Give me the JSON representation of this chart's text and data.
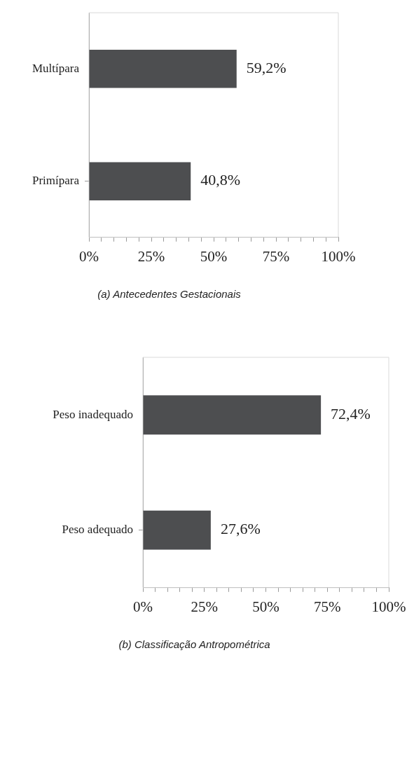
{
  "chart_data": [
    {
      "type": "bar",
      "orientation": "horizontal",
      "title": "(a) Antecedentes Gestacionais",
      "categories": [
        "Multípara",
        "Primípara"
      ],
      "values": [
        59.2,
        40.8
      ],
      "value_labels": [
        "59,2%",
        "40,8%"
      ],
      "color": "#4d4e50",
      "xlim": [
        0,
        100
      ],
      "xticks": [
        {
          "value": 0,
          "label": "0%"
        },
        {
          "value": 5,
          "label": null
        },
        {
          "value": 10,
          "label": null
        },
        {
          "value": 15,
          "label": null
        },
        {
          "value": 20,
          "label": null
        },
        {
          "value": 25,
          "label": "25%"
        },
        {
          "value": 30,
          "label": null
        },
        {
          "value": 35,
          "label": null
        },
        {
          "value": 40,
          "label": null
        },
        {
          "value": 45,
          "label": null
        },
        {
          "value": 50,
          "label": "50%"
        },
        {
          "value": 55,
          "label": null
        },
        {
          "value": 60,
          "label": null
        },
        {
          "value": 65,
          "label": null
        },
        {
          "value": 70,
          "label": null
        },
        {
          "value": 75,
          "label": "75%"
        },
        {
          "value": 80,
          "label": null
        },
        {
          "value": 85,
          "label": null
        },
        {
          "value": 90,
          "label": null
        },
        {
          "value": 95,
          "label": null
        },
        {
          "value": 100,
          "label": "100%"
        }
      ],
      "grid": false,
      "legend": false
    },
    {
      "type": "bar",
      "orientation": "horizontal",
      "title": "(b) Classificação Antropométrica",
      "categories": [
        "Peso inadequado",
        "Peso adequado"
      ],
      "values": [
        72.4,
        27.6
      ],
      "value_labels": [
        "72,4%",
        "27,6%"
      ],
      "color": "#4d4e50",
      "xlim": [
        0,
        100
      ],
      "xticks": [
        {
          "value": 0,
          "label": "0%"
        },
        {
          "value": 5,
          "label": null
        },
        {
          "value": 10,
          "label": null
        },
        {
          "value": 15,
          "label": null
        },
        {
          "value": 20,
          "label": null
        },
        {
          "value": 25,
          "label": "25%"
        },
        {
          "value": 30,
          "label": null
        },
        {
          "value": 35,
          "label": null
        },
        {
          "value": 40,
          "label": null
        },
        {
          "value": 45,
          "label": null
        },
        {
          "value": 50,
          "label": "50%"
        },
        {
          "value": 55,
          "label": null
        },
        {
          "value": 60,
          "label": null
        },
        {
          "value": 65,
          "label": null
        },
        {
          "value": 70,
          "label": null
        },
        {
          "value": 75,
          "label": "75%"
        },
        {
          "value": 80,
          "label": null
        },
        {
          "value": 85,
          "label": null
        },
        {
          "value": 90,
          "label": null
        },
        {
          "value": 95,
          "label": null
        },
        {
          "value": 100,
          "label": "100%"
        }
      ],
      "grid": false,
      "legend": false
    }
  ]
}
